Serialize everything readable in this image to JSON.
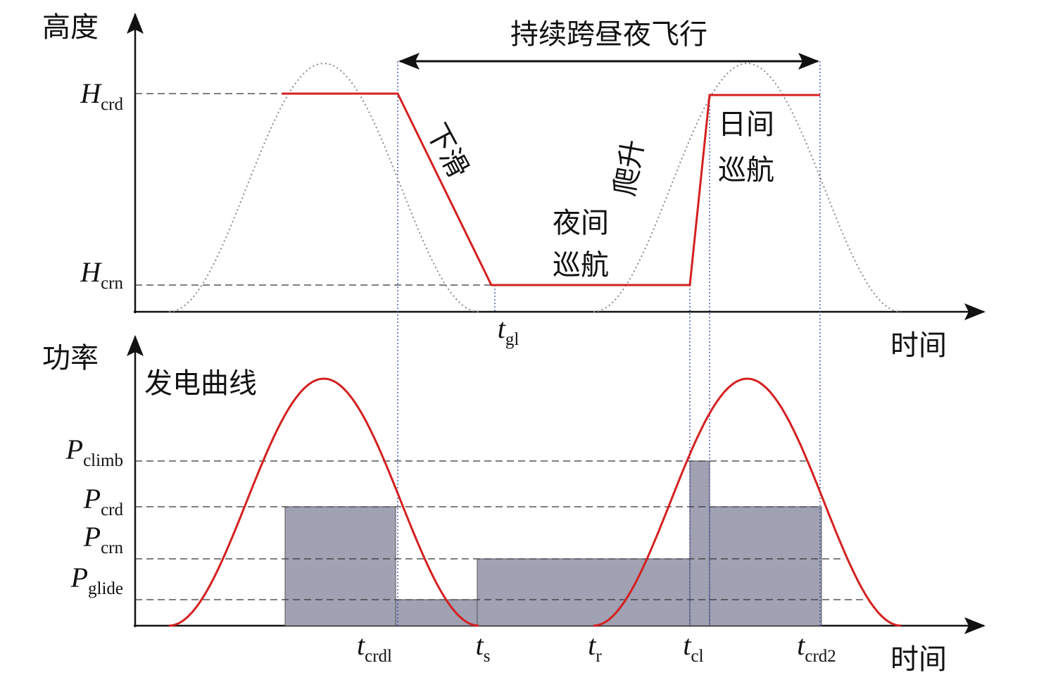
{
  "axes": {
    "top_y_label": "高度",
    "top_x_label": "时间",
    "bottom_y_label": "功率",
    "bottom_x_label": "时间"
  },
  "span_label": "持续跨昼夜飞行",
  "phases": {
    "glide": "下滑",
    "climb": "爬升",
    "night_cruise": [
      "夜间",
      "巡航"
    ],
    "day_cruise": [
      "日间",
      "巡航"
    ]
  },
  "generation_curve": "发电曲线",
  "altitude_levels": [
    {
      "main": "H",
      "sub": "crd"
    },
    {
      "main": "H",
      "sub": "crn"
    }
  ],
  "power_levels": [
    {
      "main": "P",
      "sub": "climb"
    },
    {
      "main": "P",
      "sub": "crd"
    },
    {
      "main": "P",
      "sub": "crn"
    },
    {
      "main": "P",
      "sub": "glide"
    }
  ],
  "top_times": [
    {
      "main": "t",
      "sub": "gl"
    }
  ],
  "bottom_times": [
    {
      "main": "t",
      "sub": "crdl"
    },
    {
      "main": "t",
      "sub": "s"
    },
    {
      "main": "t",
      "sub": "r"
    },
    {
      "main": "t",
      "sub": "cl"
    },
    {
      "main": "t",
      "sub": "crd2"
    }
  ]
}
